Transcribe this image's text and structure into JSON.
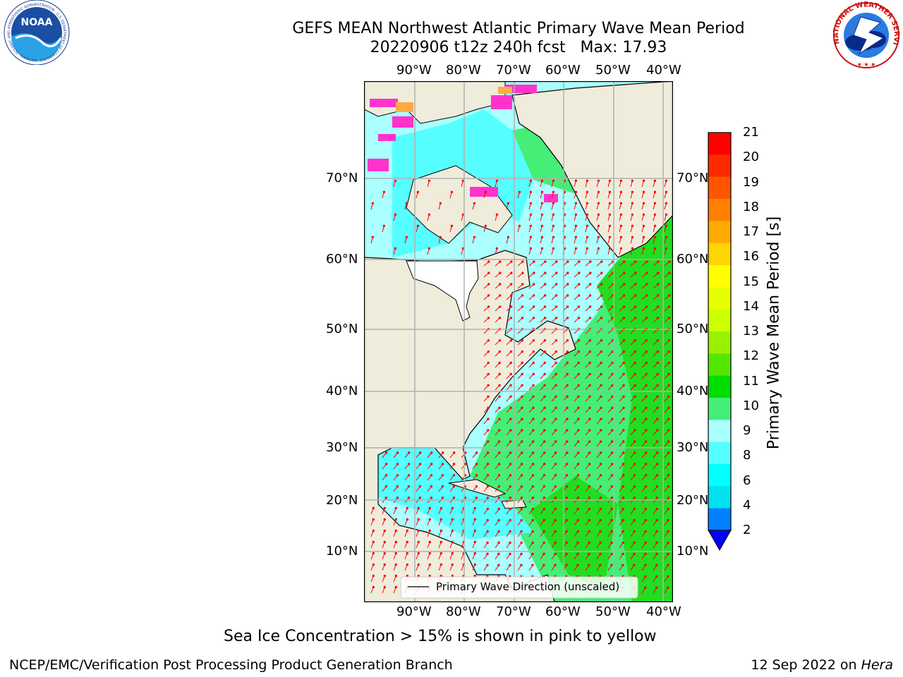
{
  "title": {
    "line1": "GEFS MEAN Northwest Atlantic Primary Wave Mean Period",
    "line2": "20220906 t12z 240h fcst   Max: 17.93"
  },
  "axes": {
    "lon_labels": [
      "90°W",
      "80°W",
      "70°W",
      "60°W",
      "50°W",
      "40°W"
    ],
    "lat_labels": [
      "70°N",
      "60°N",
      "50°N",
      "40°N",
      "30°N",
      "20°N",
      "10°N"
    ]
  },
  "legend": {
    "label": "Primary Wave Direction (unscaled)"
  },
  "colorbar": {
    "label": "Primary Wave Mean Period [s]",
    "ticks": [
      "21",
      "20",
      "19",
      "18",
      "17",
      "16",
      "15",
      "14",
      "13",
      "12",
      "11",
      "10",
      "9",
      "8",
      "6",
      "4",
      "2"
    ],
    "colors": [
      "#ff0000",
      "#ff2a00",
      "#ff5500",
      "#ff8000",
      "#ffaa00",
      "#ffd400",
      "#ffff00",
      "#e6ff00",
      "#ccff00",
      "#99f000",
      "#55e600",
      "#00dd00",
      "#44ee77",
      "#aaffff",
      "#55ffff",
      "#00ffff",
      "#00e0f0",
      "#0080ff"
    ]
  },
  "note": "Sea Ice Concentration > 15% is shown in pink to yellow",
  "footer": {
    "left": "NCEP/EMC/Verification Post Processing Product Generation Branch",
    "right_date": "12 Sep 2022 on ",
    "right_host": "Hera"
  },
  "logos": {
    "noaa": "NOAA",
    "noaa_ring": "NATIONAL OCEANIC AND ATMOSPHERIC ADMINISTRATION · U.S. DEPARTMENT OF COMMERCE",
    "nws_ring": "NATIONAL WEATHER SERVICE"
  }
}
